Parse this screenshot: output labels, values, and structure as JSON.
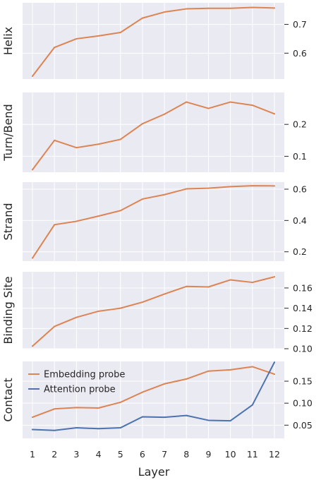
{
  "figure": {
    "xlabel": "Layer"
  },
  "chart_data": [
    {
      "type": "line",
      "ylabel": "Helix",
      "x": [
        1,
        2,
        3,
        4,
        5,
        6,
        7,
        8,
        9,
        10,
        11,
        12
      ],
      "ylim": [
        0.51,
        0.775
      ],
      "yticks": [
        0.6,
        0.7
      ],
      "series": [
        {
          "color": "#dd8452",
          "values": [
            0.52,
            0.62,
            0.65,
            0.66,
            0.672,
            0.722,
            0.743,
            0.754,
            0.756,
            0.756,
            0.759,
            0.757
          ]
        }
      ]
    },
    {
      "type": "line",
      "ylabel": "Turn/Bend",
      "x": [
        1,
        2,
        3,
        4,
        5,
        6,
        7,
        8,
        9,
        10,
        11,
        12
      ],
      "ylim": [
        0.05,
        0.3
      ],
      "yticks": [
        0.1,
        0.2
      ],
      "series": [
        {
          "color": "#dd8452",
          "values": [
            0.058,
            0.15,
            0.127,
            0.138,
            0.153,
            0.202,
            0.232,
            0.27,
            0.25,
            0.27,
            0.26,
            0.233
          ]
        }
      ]
    },
    {
      "type": "line",
      "ylabel": "Strand",
      "x": [
        1,
        2,
        3,
        4,
        5,
        6,
        7,
        8,
        9,
        10,
        11,
        12
      ],
      "ylim": [
        0.14,
        0.645
      ],
      "yticks": [
        0.2,
        0.4,
        0.6
      ],
      "series": [
        {
          "color": "#dd8452",
          "values": [
            0.16,
            0.373,
            0.395,
            0.428,
            0.463,
            0.537,
            0.565,
            0.602,
            0.606,
            0.616,
            0.622,
            0.621
          ]
        }
      ]
    },
    {
      "type": "line",
      "ylabel": "Binding Site",
      "x": [
        1,
        2,
        3,
        4,
        5,
        6,
        7,
        8,
        9,
        10,
        11,
        12
      ],
      "ylim": [
        0.1,
        0.176
      ],
      "yticks": [
        0.1,
        0.12,
        0.14,
        0.16
      ],
      "series": [
        {
          "color": "#dd8452",
          "values": [
            0.1025,
            0.122,
            0.131,
            0.137,
            0.14,
            0.146,
            0.154,
            0.1615,
            0.161,
            0.168,
            0.1655,
            0.171
          ]
        }
      ]
    },
    {
      "type": "line",
      "ylabel": "Contact",
      "x": [
        1,
        2,
        3,
        4,
        5,
        6,
        7,
        8,
        9,
        10,
        11,
        12
      ],
      "ylim": [
        0.02,
        0.195
      ],
      "yticks": [
        0.05,
        0.1,
        0.15
      ],
      "legend_position": "top-left",
      "series": [
        {
          "name": "Embedding probe",
          "color": "#dd8452",
          "values": [
            0.068,
            0.087,
            0.09,
            0.089,
            0.102,
            0.125,
            0.144,
            0.155,
            0.173,
            0.176,
            0.183,
            0.166
          ]
        },
        {
          "name": "Attention probe",
          "color": "#4c72b0",
          "values": [
            0.04,
            0.038,
            0.044,
            0.042,
            0.044,
            0.069,
            0.068,
            0.072,
            0.061,
            0.06,
            0.096,
            0.193
          ]
        }
      ]
    }
  ]
}
